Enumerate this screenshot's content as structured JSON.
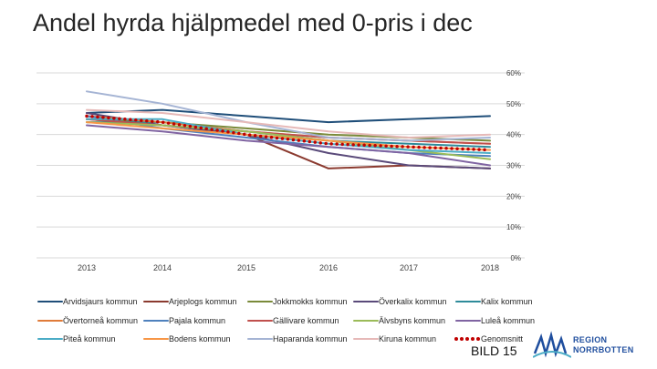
{
  "slide": {
    "title": "Andel hyrda hjälpmedel med 0-pris i dec",
    "label": "BILD 15",
    "logo": {
      "line1": "REGION",
      "line2": "NORRBOTTEN",
      "color": "#1f4e9e"
    }
  },
  "chart_data": {
    "type": "line",
    "title": "",
    "xlabel": "",
    "ylabel": "",
    "categories": [
      "2013",
      "2014",
      "2015",
      "2016",
      "2017",
      "2018"
    ],
    "y_tick_labels": [
      "0%",
      "10%",
      "20%",
      "30%",
      "40%",
      "50%",
      "60%"
    ],
    "y_tick_values": [
      0,
      10,
      20,
      30,
      40,
      50,
      60
    ],
    "ylim": [
      0,
      60
    ],
    "y_axis_position": "right",
    "grid": true,
    "legend_position": "bottom",
    "series": [
      {
        "name": "Arvidsjaurs kommun",
        "color": "#1f4e79",
        "style": "solid",
        "values": [
          47,
          48,
          46,
          44,
          45,
          46
        ]
      },
      {
        "name": "Arjeplogs kommun",
        "color": "#8b3a2f",
        "style": "solid",
        "values": [
          45,
          43,
          40,
          29,
          30,
          29
        ]
      },
      {
        "name": "Jokkmokks kommun",
        "color": "#7a8a3a",
        "style": "solid",
        "values": [
          45,
          44,
          42,
          40,
          39,
          38
        ]
      },
      {
        "name": "Överkalix kommun",
        "color": "#5a4a7a",
        "style": "solid",
        "values": [
          47,
          43,
          40,
          34,
          30,
          29
        ]
      },
      {
        "name": "Kalix kommun",
        "color": "#2e8b9a",
        "style": "solid",
        "values": [
          44,
          44,
          41,
          38,
          37,
          36
        ]
      },
      {
        "name": "Övertorneå kommun",
        "color": "#e07b39",
        "style": "solid",
        "values": [
          46,
          44,
          41,
          39,
          38,
          37
        ]
      },
      {
        "name": "Pajala kommun",
        "color": "#4f81bd",
        "style": "solid",
        "values": [
          46,
          42,
          39,
          36,
          34,
          33
        ]
      },
      {
        "name": "Gällivare kommun",
        "color": "#c0504d",
        "style": "solid",
        "values": [
          45,
          43,
          41,
          39,
          38,
          37
        ]
      },
      {
        "name": "Älvsbyns kommun",
        "color": "#9bbb59",
        "style": "solid",
        "values": [
          44,
          43,
          41,
          38,
          35,
          32
        ]
      },
      {
        "name": "Luleå kommun",
        "color": "#8064a2",
        "style": "solid",
        "values": [
          43,
          41,
          38,
          36,
          34,
          30
        ]
      },
      {
        "name": "Piteå kommun",
        "color": "#4bacc6",
        "style": "solid",
        "values": [
          45,
          45,
          40,
          37,
          35,
          34
        ]
      },
      {
        "name": "Bodens kommun",
        "color": "#f79646",
        "style": "solid",
        "values": [
          44,
          42,
          40,
          38,
          36,
          35
        ]
      },
      {
        "name": "Haparanda kommun",
        "color": "#a5b4d4",
        "style": "solid",
        "values": [
          54,
          50,
          44,
          39,
          38,
          39
        ]
      },
      {
        "name": "Kiruna kommun",
        "color": "#e6b9b8",
        "style": "solid",
        "values": [
          48,
          47,
          44,
          41,
          39,
          40
        ]
      },
      {
        "name": "Genomsnitt",
        "color": "#c00000",
        "style": "dotted",
        "values": [
          46,
          44,
          40,
          37,
          36,
          35
        ]
      }
    ]
  }
}
